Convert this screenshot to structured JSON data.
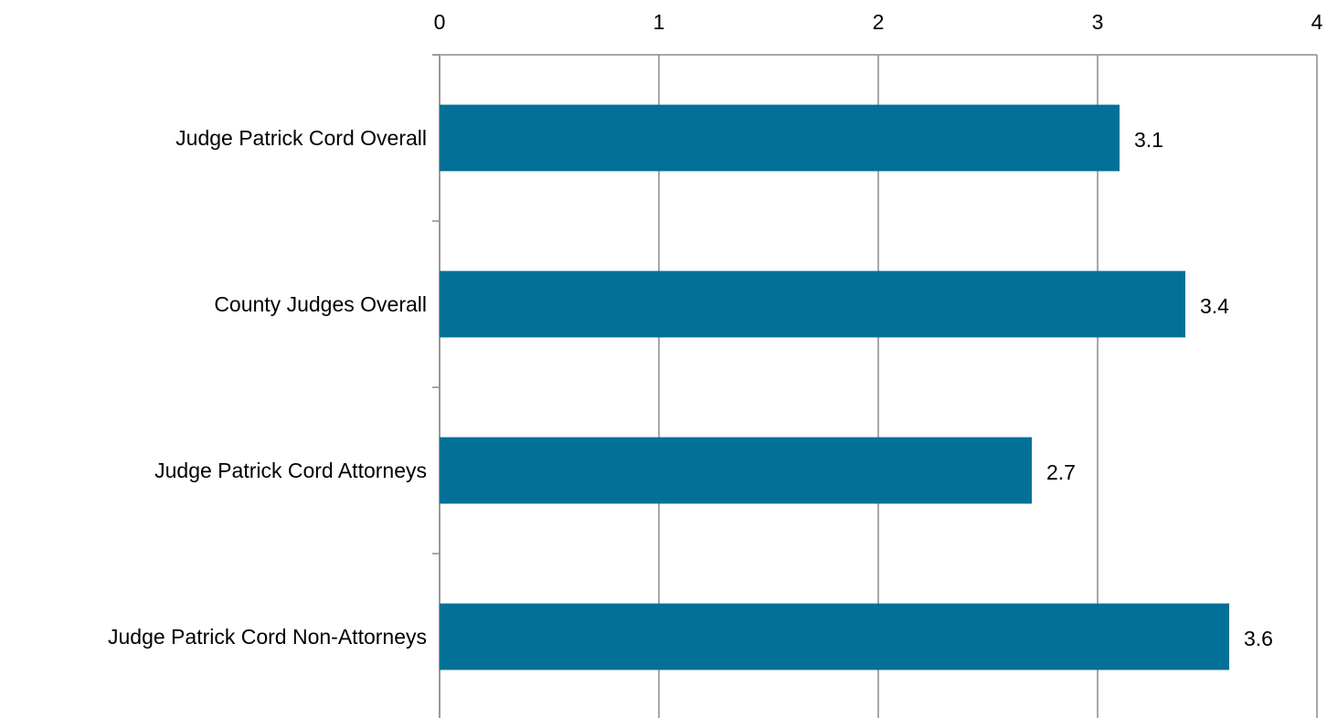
{
  "chart_data": {
    "type": "bar",
    "orientation": "horizontal",
    "categories": [
      "Judge Patrick Cord Overall",
      "County Judges Overall",
      "Judge Patrick Cord Attorneys",
      "Judge Patrick Cord Non-Attorneys"
    ],
    "values": [
      3.1,
      3.4,
      2.7,
      3.6
    ],
    "color": "#037098",
    "xlim": [
      0,
      4
    ],
    "xticks": [
      0,
      1,
      2,
      3,
      4
    ],
    "grid": true,
    "x_axis_position": "top"
  }
}
